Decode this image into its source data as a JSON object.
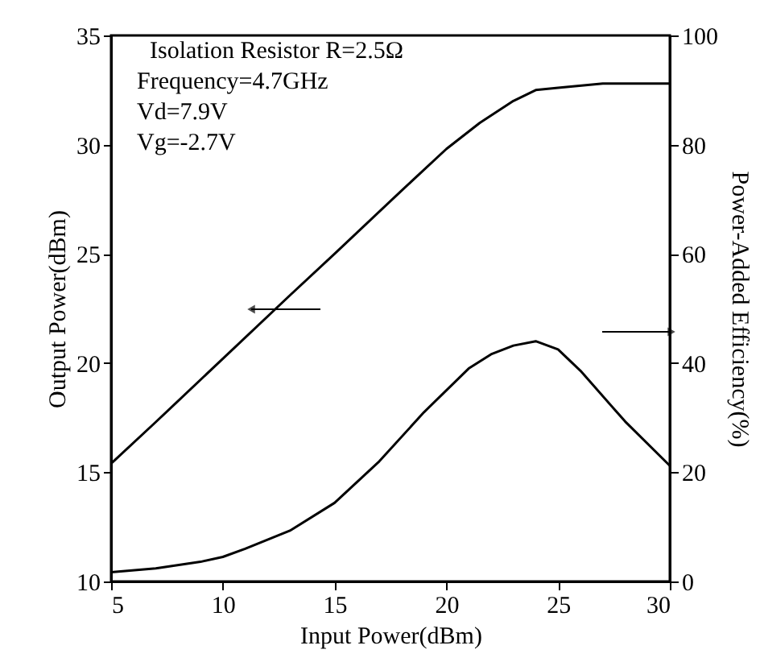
{
  "chart_data": {
    "type": "line",
    "xlabel": "Input Power(dBm)",
    "ylabel": "Output Power(dBm)",
    "y2label": "Power-Added Efficiency(%)",
    "annotations": [
      "Isolation Resistor R=2.5Ω",
      "Frequency=4.7GHz",
      "Vd=7.9V",
      "Vg=-2.7V"
    ],
    "xlim": [
      5,
      30
    ],
    "xticks": [
      5,
      10,
      15,
      20,
      25,
      30
    ],
    "ylim": [
      10,
      35
    ],
    "yticks": [
      10,
      15,
      20,
      25,
      30,
      35
    ],
    "y2lim": [
      0,
      100
    ],
    "y2ticks": [
      0,
      20,
      40,
      60,
      80,
      100
    ],
    "grid": false,
    "legend": false,
    "marker": "none",
    "line_style": "solid",
    "series": [
      {
        "color": "#000000",
        "x": [
          5,
          7,
          10,
          13,
          15,
          18,
          20,
          21.5,
          23,
          24,
          25,
          27,
          30
        ],
        "values": [
          15.4,
          17.3,
          20.2,
          23.1,
          25.0,
          27.9,
          29.8,
          31.0,
          32.0,
          32.5,
          32.6,
          32.8,
          32.8
        ]
      },
      {
        "color": "#000000",
        "axis": "y2",
        "x": [
          5,
          7,
          9,
          10,
          11,
          13,
          15,
          17,
          19,
          21,
          22,
          23,
          24,
          25,
          26,
          28,
          30
        ],
        "values": [
          1.7,
          2.4,
          3.6,
          4.5,
          6.0,
          9.3,
          14.4,
          22,
          31,
          39,
          41.6,
          43.2,
          44,
          42.5,
          38.6,
          29.3,
          21.2
        ]
      }
    ]
  }
}
